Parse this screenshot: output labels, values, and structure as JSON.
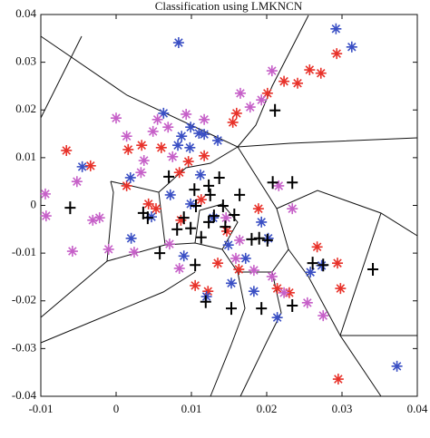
{
  "chart_data": {
    "type": "scatter",
    "title": "Classification using LMKNCN",
    "xlim": [
      -0.01,
      0.04
    ],
    "ylim": [
      -0.04,
      0.04
    ],
    "xticks": [
      -0.01,
      0,
      0.01,
      0.02,
      0.03,
      0.04
    ],
    "yticks": [
      0.04,
      0.03,
      0.02,
      0.01,
      0,
      -0.01,
      -0.02,
      -0.03,
      -0.04
    ],
    "grid": false,
    "series": [
      {
        "color": "#e8322a",
        "marker": "asterisk",
        "x": [
          0.0293,
          0.0272,
          0.0257,
          0.0241,
          0.0223,
          0.0201,
          0.016,
          0.0155,
          0.0117,
          0.0096,
          0.0034,
          0.0016,
          0.006,
          -0.0066,
          -0.0034,
          0.0014,
          0.0053,
          0.0086,
          0.0113,
          0.0147,
          0.0189,
          0.0267,
          0.0294,
          0.0135,
          0.023,
          0.0214,
          0.0298,
          0.0163,
          0.0122,
          0.0295,
          0.0105,
          0.0043,
          0.0084
        ],
        "values": [
          0.0318,
          0.0277,
          0.0284,
          0.0256,
          0.026,
          0.0235,
          0.0193,
          0.0174,
          0.0104,
          0.0092,
          0.0126,
          0.0117,
          0.0121,
          0.0115,
          0.0083,
          0.0041,
          -0.0007,
          -0.0031,
          0.0012,
          -0.0054,
          -0.0007,
          -0.0087,
          -0.0121,
          -0.0121,
          -0.0183,
          -0.0174,
          -0.0174,
          -0.0134,
          -0.018,
          -0.0364,
          -0.0168,
          0.0003,
          0.0069
        ]
      },
      {
        "color": "#3a4fc4",
        "marker": "asterisk",
        "x": [
          0.0083,
          0.0292,
          0.0313,
          -0.0045,
          0.0063,
          0.0099,
          0.011,
          0.0087,
          0.0135,
          0.0117,
          0.0082,
          0.0098,
          0.0072,
          0.0047,
          0.002,
          0.0193,
          0.0202,
          0.0149,
          0.0172,
          0.0129,
          0.009,
          0.012,
          0.0153,
          0.0183,
          0.0214,
          0.0258,
          0.0273,
          0.0373,
          0.0112,
          0.0099,
          0.0019
        ],
        "values": [
          0.0341,
          0.037,
          0.0332,
          0.0081,
          0.0193,
          0.0164,
          0.0151,
          0.0145,
          0.0136,
          0.0149,
          0.0126,
          0.0121,
          0.0022,
          -0.0024,
          -0.0069,
          -0.0035,
          -0.0069,
          -0.0083,
          -0.0111,
          -0.0026,
          -0.0106,
          -0.0191,
          -0.0163,
          -0.018,
          -0.0235,
          -0.014,
          -0.0126,
          -0.0337,
          0.0064,
          0.0003,
          0.0058
        ]
      },
      {
        "color": "#c660c8",
        "marker": "asterisk",
        "x": [
          0.0207,
          0.0193,
          0.0178,
          0.0165,
          0.0093,
          0.0055,
          0.0069,
          0,
          0.0049,
          0.0014,
          -0.0094,
          -0.0052,
          -0.0093,
          -0.0058,
          -0.0031,
          -0.0022,
          -0.001,
          0.0024,
          0.0075,
          0.0033,
          0.0037,
          0.0071,
          0.0084,
          0.0146,
          0.0164,
          0.0159,
          0.0183,
          0.0207,
          0.0223,
          0.0254,
          0.0275,
          0.0234,
          0.0216,
          0.0117
        ],
        "values": [
          0.0282,
          0.0221,
          0.0206,
          0.0235,
          0.0191,
          0.018,
          0.0164,
          0.0183,
          0.0155,
          0.0145,
          0.0024,
          0.005,
          -0.0022,
          -0.0096,
          -0.0031,
          -0.0026,
          -0.0092,
          -0.0098,
          0.0102,
          0.0069,
          0.0094,
          -0.0081,
          -0.0132,
          -0.0026,
          -0.0073,
          -0.0111,
          -0.0136,
          -0.0149,
          -0.0183,
          -0.0204,
          -0.0231,
          -0.0007,
          0.0041,
          0.018
        ]
      },
      {
        "color": "#000000",
        "marker": "plus",
        "x": [
          -0.0061,
          0.0036,
          0.007,
          0.0104,
          0.0137,
          0.0123,
          0.0106,
          0.0125,
          0.013,
          0.0142,
          0.0123,
          0.009,
          0.0113,
          0.0145,
          0.0157,
          0.018,
          0.019,
          0.0201,
          0.0164,
          0.0208,
          0.0211,
          0.0234,
          0.0105,
          0.0058,
          0.0099,
          0.0153,
          0.0193,
          0.0234,
          0.0261,
          0.0275,
          0.0341,
          0.0119,
          0.0042,
          0.0081
        ],
        "values": [
          -0.0005,
          -0.0016,
          0.006,
          0.0033,
          0.0058,
          0.0041,
          -0.0001,
          0.0022,
          -0.0022,
          -0.0001,
          -0.0035,
          -0.0026,
          -0.0067,
          -0.0045,
          -0.002,
          -0.0071,
          -0.0069,
          -0.0073,
          0.0022,
          0.0048,
          0.0199,
          0.0048,
          -0.0125,
          -0.01,
          -0.0048,
          -0.0216,
          -0.0216,
          -0.021,
          -0.0121,
          -0.0125,
          -0.0134,
          -0.0202,
          -0.0026,
          -0.005
        ]
      }
    ]
  }
}
